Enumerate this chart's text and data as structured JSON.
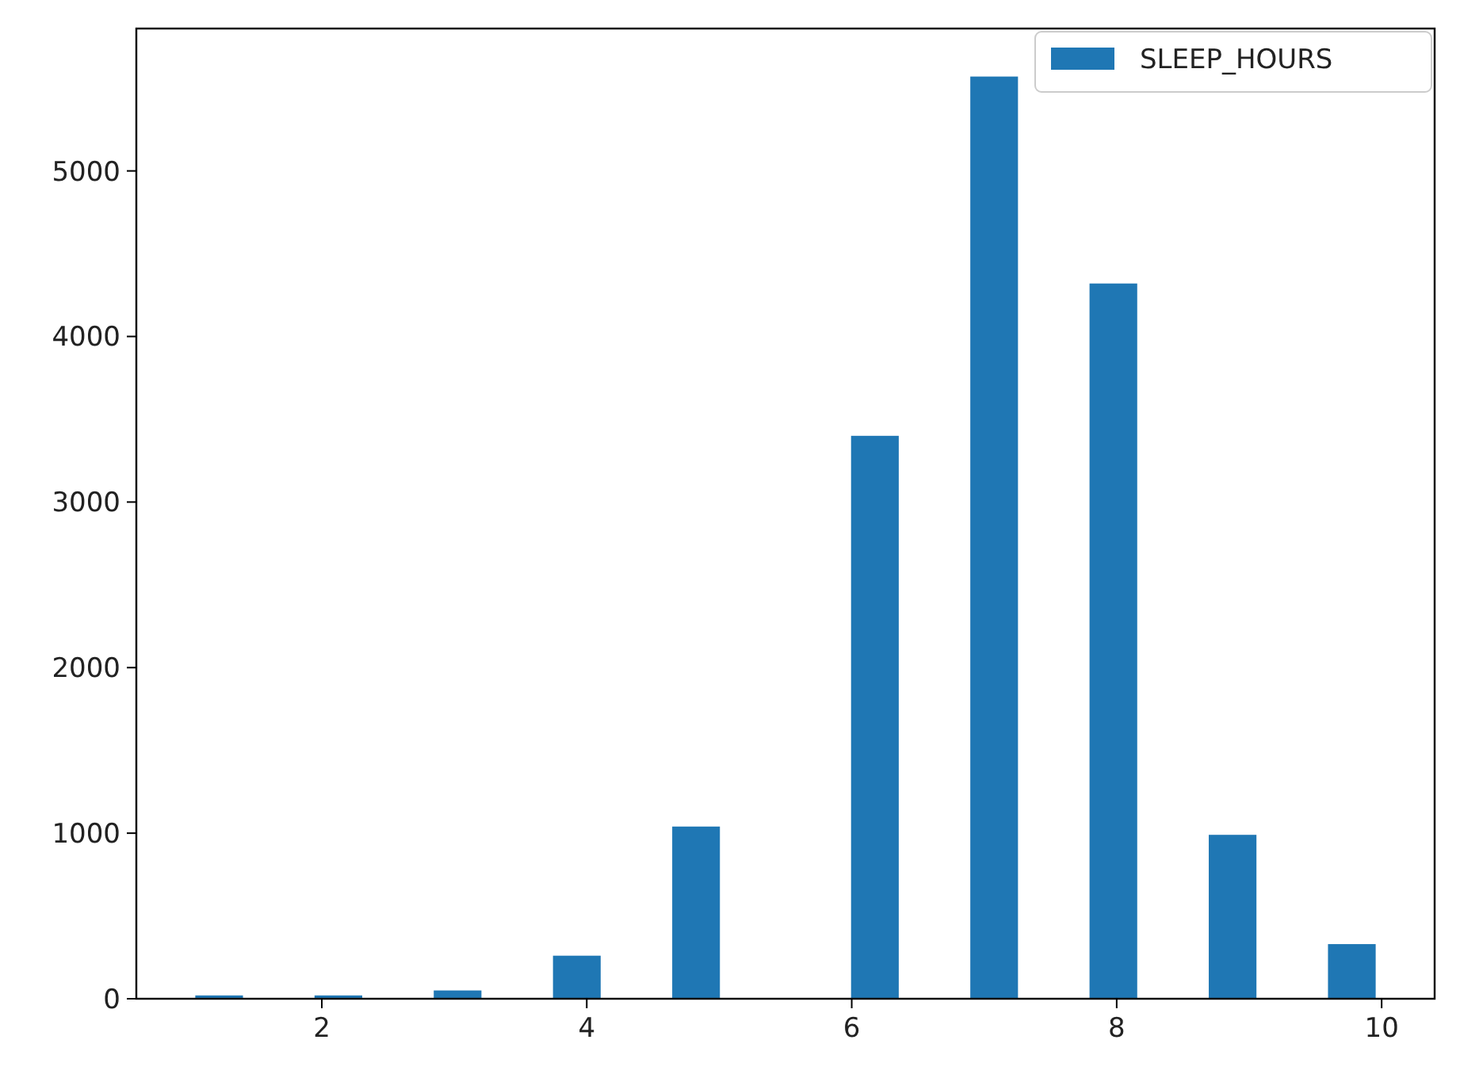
{
  "chart_data": {
    "type": "histogram",
    "bins": [
      1,
      1.45,
      1.9,
      2.35,
      2.8,
      3.25,
      3.7,
      4.15,
      4.6,
      5.05,
      5.5,
      5.95,
      6.4,
      6.85,
      7.3,
      7.75,
      8.2,
      8.65,
      9.1,
      9.55,
      10
    ],
    "series": [
      {
        "name": "SLEEP_HOURS",
        "color": "#1f77b4",
        "values": [
          20,
          0,
          20,
          0,
          50,
          0,
          260,
          0,
          1040,
          0,
          0,
          3400,
          0,
          5570,
          0,
          4320,
          0,
          990,
          0,
          330
        ]
      }
    ],
    "xlim": [
      0.6,
      10.4
    ],
    "xticks": [
      2,
      4,
      6,
      8,
      10
    ],
    "ylim": [
      0,
      5860
    ],
    "yticks": [
      0,
      1000,
      2000,
      3000,
      4000,
      5000
    ],
    "legend": "top right",
    "grid": false
  }
}
